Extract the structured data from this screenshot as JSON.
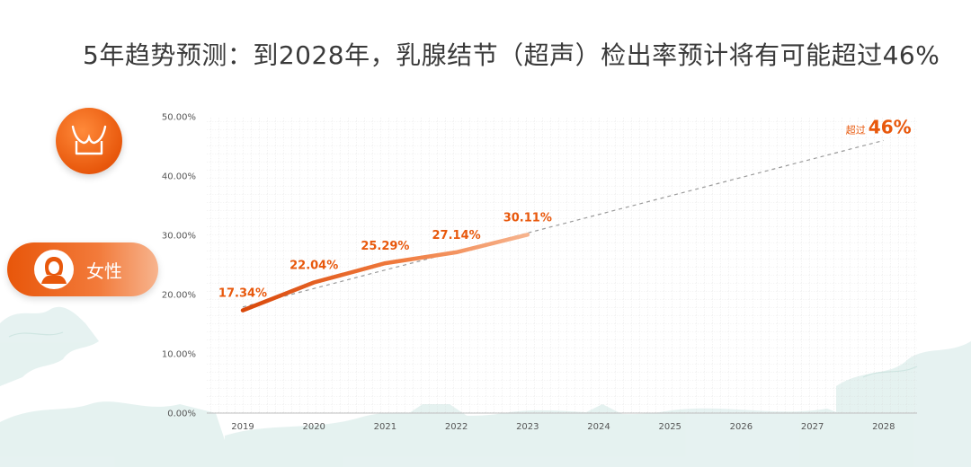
{
  "title": "5年趋势预测：到2028年，乳腺结节（超声）检出率预计将有可能超过46%",
  "side": {
    "bra_icon": "bra-icon",
    "female_label": "女性",
    "female_icon": "woman-avatar-icon"
  },
  "colors": {
    "accent": "#e8580c",
    "line_start": "#d9480a",
    "line_end": "#f7b48e",
    "trend": "#9a9a9a"
  },
  "chart_data": {
    "type": "line",
    "x": [
      "2019",
      "2020",
      "2021",
      "2022",
      "2023",
      "2024",
      "2025",
      "2026",
      "2027",
      "2028"
    ],
    "series": [
      {
        "values": [
          17.34,
          22.04,
          25.29,
          27.14,
          30.11,
          null,
          null,
          null,
          null,
          null
        ]
      }
    ],
    "data_labels": [
      "17.34%",
      "22.04%",
      "25.29%",
      "27.14%",
      "30.11%"
    ],
    "trendline": {
      "from": [
        "2019",
        17.9
      ],
      "to": [
        "2028",
        46.0
      ],
      "style": "dashed"
    },
    "annotation": {
      "prefix": "超过",
      "value": "46%",
      "x": "2028",
      "y": 46
    },
    "yticks": [
      "0.00%",
      "10.00%",
      "20.00%",
      "30.00%",
      "40.00%",
      "50.00%"
    ],
    "ylim": [
      0,
      50
    ],
    "grid": true,
    "title": "",
    "xlabel": "",
    "ylabel": ""
  }
}
